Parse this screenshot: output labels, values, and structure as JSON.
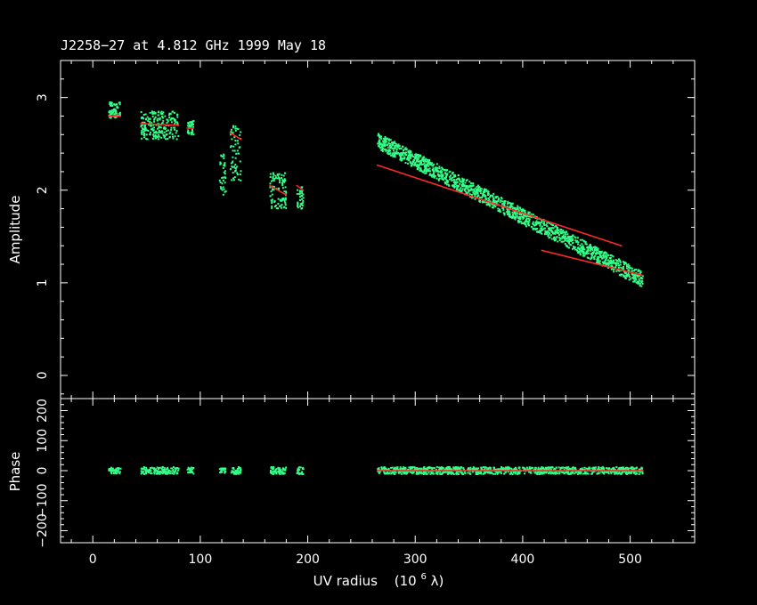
{
  "chart_data": {
    "type": "scatter",
    "title": "J2258−27 at 4.812 GHz 1999 May 18",
    "xlabel": "UV radius",
    "xlabel_unit": "(10",
    "xlabel_exp": "6",
    "xlabel_lambda": " λ)",
    "xlim": [
      -30,
      560
    ],
    "x_ticks": [
      0,
      100,
      200,
      300,
      400,
      500
    ],
    "x_tick_labels": [
      "0",
      "100",
      "200",
      "300",
      "400",
      "500"
    ],
    "colors": {
      "data": "#33ff88",
      "model": "#ff2a2a",
      "axes": "#ffffff",
      "background": "#000000"
    },
    "panels": [
      {
        "name": "amplitude",
        "ylabel": "Amplitude",
        "ylim": [
          -0.25,
          3.4
        ],
        "y_ticks": [
          0,
          1,
          2,
          3
        ],
        "y_tick_labels": [
          "0",
          "1",
          "2",
          "3"
        ],
        "series": [
          {
            "role": "data",
            "groups": [
              {
                "x_range": [
                  15,
                  26
                ],
                "amplitude": [
                  2.78,
                  2.95
                ]
              },
              {
                "x_range": [
                  45,
                  80
                ],
                "amplitude": [
                  2.55,
                  2.85
                ]
              },
              {
                "x_range": [
                  88,
                  94
                ],
                "amplitude": [
                  2.6,
                  2.75
                ]
              },
              {
                "x_range": [
                  118,
                  124
                ],
                "amplitude": [
                  1.95,
                  2.4
                ]
              },
              {
                "x_range": [
                  128,
                  138
                ],
                "amplitude": [
                  2.1,
                  2.7
                ]
              },
              {
                "x_range": [
                  165,
                  180
                ],
                "amplitude": [
                  1.8,
                  2.2
                ]
              },
              {
                "x_range": [
                  190,
                  196
                ],
                "amplitude": [
                  1.8,
                  2.05
                ]
              },
              {
                "x_range": [
                  265,
                  512
                ],
                "amplitude_start": [
                  2.45,
                  2.62
                ],
                "amplitude_end": [
                  0.95,
                  1.12
                ]
              }
            ]
          },
          {
            "role": "model",
            "segments": [
              {
                "x": [
                  15,
                  26
                ],
                "y": [
                  2.8,
                  2.8
                ]
              },
              {
                "x": [
                  45,
                  80
                ],
                "y": [
                  2.72,
                  2.7
                ]
              },
              {
                "x": [
                  88,
                  94
                ],
                "y": [
                  2.67,
                  2.67
                ]
              },
              {
                "x": [
                  128,
                  138
                ],
                "y": [
                  2.62,
                  2.55
                ]
              },
              {
                "x": [
                  165,
                  180
                ],
                "y": [
                  2.05,
                  1.95
                ]
              },
              {
                "x": [
                  190,
                  196
                ],
                "y": [
                  2.05,
                  2.0
                ]
              },
              {
                "x": [
                  265,
                  492
                ],
                "y": [
                  2.27,
                  1.4
                ]
              },
              {
                "x": [
                  418,
                  512
                ],
                "y": [
                  1.35,
                  1.08
                ]
              }
            ]
          }
        ]
      },
      {
        "name": "phase",
        "ylabel": "Phase",
        "ylim": [
          -240,
          240
        ],
        "y_ticks": [
          -200,
          -100,
          0,
          100,
          200
        ],
        "y_tick_labels": [
          "−200",
          "−100",
          "0",
          "100",
          "200"
        ],
        "series": [
          {
            "role": "data",
            "groups": [
              {
                "x_range": [
                  15,
                  26
                ],
                "phase_spread": 10
              },
              {
                "x_range": [
                  45,
                  80
                ],
                "phase_spread": 12
              },
              {
                "x_range": [
                  88,
                  94
                ],
                "phase_spread": 12
              },
              {
                "x_range": [
                  118,
                  124
                ],
                "phase_spread": 8
              },
              {
                "x_range": [
                  128,
                  138
                ],
                "phase_spread": 12
              },
              {
                "x_range": [
                  165,
                  180
                ],
                "phase_spread": 12
              },
              {
                "x_range": [
                  190,
                  196
                ],
                "phase_spread": 12
              },
              {
                "x_range": [
                  265,
                  512
                ],
                "phase_spread": 12
              }
            ]
          },
          {
            "role": "model",
            "segments": [
              {
                "x": [
                  265,
                  512
                ],
                "y": [
                  0,
                  0
                ]
              }
            ]
          }
        ]
      }
    ]
  }
}
